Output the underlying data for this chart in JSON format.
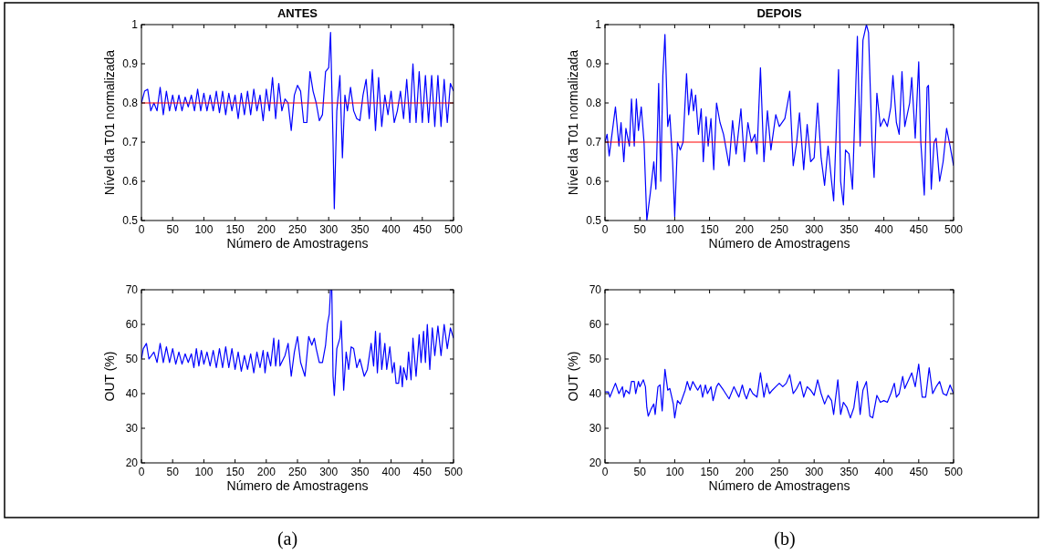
{
  "chart_data": [
    {
      "type": "line",
      "title": "ANTES",
      "xlabel": "Número de Amostragens",
      "ylabel": "Nível da T01 normalizada",
      "xlim": [
        0,
        500
      ],
      "xticks": [
        0,
        50,
        100,
        150,
        200,
        250,
        300,
        350,
        400,
        450,
        500
      ],
      "ylim": [
        0.5,
        1
      ],
      "yticks": [
        0.5,
        0.6,
        0.7,
        0.8,
        0.9,
        1
      ],
      "grid": false,
      "marker": "none",
      "line_style": "solid",
      "x": [
        0,
        5,
        10,
        15,
        20,
        25,
        30,
        35,
        40,
        45,
        50,
        55,
        60,
        65,
        70,
        75,
        80,
        85,
        90,
        95,
        100,
        105,
        110,
        115,
        120,
        125,
        130,
        135,
        140,
        145,
        150,
        155,
        160,
        165,
        170,
        175,
        180,
        185,
        190,
        195,
        200,
        205,
        210,
        215,
        220,
        225,
        230,
        235,
        240,
        245,
        250,
        255,
        260,
        265,
        270,
        275,
        280,
        285,
        290,
        295,
        300,
        303,
        307,
        309,
        313,
        318,
        322,
        326,
        330,
        335,
        340,
        345,
        350,
        355,
        360,
        365,
        370,
        375,
        380,
        385,
        390,
        395,
        400,
        405,
        410,
        415,
        420,
        425,
        430,
        435,
        440,
        445,
        450,
        455,
        460,
        465,
        470,
        475,
        480,
        485,
        490,
        495,
        500
      ],
      "series": [
        {
          "color": "#0000ff",
          "values": [
            0.8,
            0.83,
            0.835,
            0.78,
            0.8,
            0.78,
            0.84,
            0.77,
            0.83,
            0.78,
            0.82,
            0.78,
            0.82,
            0.78,
            0.815,
            0.79,
            0.82,
            0.78,
            0.835,
            0.78,
            0.825,
            0.78,
            0.82,
            0.78,
            0.83,
            0.775,
            0.83,
            0.77,
            0.825,
            0.78,
            0.82,
            0.76,
            0.825,
            0.77,
            0.83,
            0.77,
            0.835,
            0.78,
            0.82,
            0.755,
            0.835,
            0.78,
            0.865,
            0.76,
            0.85,
            0.78,
            0.81,
            0.8,
            0.73,
            0.82,
            0.845,
            0.83,
            0.75,
            0.75,
            0.88,
            0.83,
            0.8,
            0.755,
            0.77,
            0.88,
            0.89,
            0.98,
            0.7,
            0.53,
            0.78,
            0.87,
            0.66,
            0.82,
            0.78,
            0.84,
            0.78,
            0.76,
            0.755,
            0.82,
            0.86,
            0.76,
            0.885,
            0.73,
            0.865,
            0.74,
            0.82,
            0.77,
            0.83,
            0.75,
            0.78,
            0.83,
            0.76,
            0.86,
            0.75,
            0.9,
            0.75,
            0.88,
            0.75,
            0.87,
            0.75,
            0.87,
            0.74,
            0.87,
            0.74,
            0.86,
            0.75,
            0.85,
            0.83
          ]
        }
      ],
      "ref_lines": [
        {
          "axis": "y",
          "value": 0.8,
          "color": "#ff0000"
        }
      ]
    },
    {
      "type": "line",
      "title": "DEPOIS",
      "xlabel": "Número de Amostragens",
      "ylabel": "Nível da T01 normalizada",
      "xlim": [
        0,
        500
      ],
      "xticks": [
        0,
        50,
        100,
        150,
        200,
        250,
        300,
        350,
        400,
        450,
        500
      ],
      "ylim": [
        0.5,
        1
      ],
      "yticks": [
        0.5,
        0.6,
        0.7,
        0.8,
        0.9,
        1
      ],
      "grid": false,
      "marker": "none",
      "line_style": "solid",
      "x": [
        0,
        3,
        6,
        10,
        15,
        20,
        23,
        27,
        30,
        35,
        38,
        42,
        45,
        48,
        52,
        56,
        60,
        65,
        70,
        73,
        77,
        80,
        83,
        86,
        90,
        93,
        97,
        100,
        104,
        108,
        112,
        117,
        120,
        124,
        127,
        130,
        134,
        138,
        141,
        145,
        148,
        152,
        156,
        160,
        165,
        170,
        178,
        183,
        188,
        195,
        200,
        205,
        210,
        215,
        218,
        223,
        228,
        233,
        238,
        245,
        250,
        258,
        265,
        270,
        275,
        279,
        285,
        290,
        295,
        300,
        305,
        310,
        315,
        320,
        325,
        328,
        335,
        338,
        342,
        345,
        350,
        355,
        362,
        366,
        370,
        375,
        378,
        383,
        386,
        390,
        395,
        400,
        405,
        410,
        413,
        418,
        422,
        426,
        430,
        437,
        440,
        445,
        450,
        453,
        458,
        462,
        464,
        468,
        472,
        475,
        480,
        485,
        490,
        495,
        500
      ],
      "series": [
        {
          "color": "#0000ff",
          "values": [
            0.7,
            0.72,
            0.665,
            0.72,
            0.79,
            0.69,
            0.75,
            0.65,
            0.735,
            0.69,
            0.81,
            0.69,
            0.81,
            0.73,
            0.79,
            0.7,
            0.5,
            0.57,
            0.65,
            0.58,
            0.85,
            0.6,
            0.87,
            0.975,
            0.74,
            0.77,
            0.65,
            0.51,
            0.7,
            0.68,
            0.7,
            0.875,
            0.77,
            0.835,
            0.78,
            0.82,
            0.72,
            0.785,
            0.65,
            0.765,
            0.69,
            0.76,
            0.63,
            0.8,
            0.75,
            0.72,
            0.64,
            0.755,
            0.67,
            0.785,
            0.65,
            0.75,
            0.7,
            0.72,
            0.67,
            0.89,
            0.65,
            0.78,
            0.68,
            0.77,
            0.74,
            0.76,
            0.83,
            0.64,
            0.7,
            0.775,
            0.63,
            0.745,
            0.65,
            0.66,
            0.8,
            0.66,
            0.59,
            0.69,
            0.6,
            0.55,
            0.885,
            0.6,
            0.54,
            0.68,
            0.67,
            0.58,
            0.97,
            0.69,
            0.96,
            1.0,
            0.98,
            0.7,
            0.61,
            0.825,
            0.74,
            0.76,
            0.74,
            0.79,
            0.87,
            0.75,
            0.72,
            0.88,
            0.74,
            0.8,
            0.865,
            0.71,
            0.905,
            0.7,
            0.565,
            0.84,
            0.845,
            0.58,
            0.7,
            0.71,
            0.6,
            0.65,
            0.735,
            0.69,
            0.64
          ]
        }
      ],
      "ref_lines": [
        {
          "axis": "y",
          "value": 0.7,
          "color": "#ff0000"
        }
      ]
    },
    {
      "type": "line",
      "xlabel": "Número de Amostragens",
      "ylabel": "OUT (%)",
      "xlim": [
        0,
        500
      ],
      "xticks": [
        0,
        50,
        100,
        150,
        200,
        250,
        300,
        350,
        400,
        450,
        500
      ],
      "ylim": [
        20,
        70
      ],
      "yticks": [
        20,
        30,
        40,
        50,
        60,
        70
      ],
      "grid": false,
      "marker": "none",
      "line_style": "solid",
      "annotations": [
        "(a)"
      ],
      "x": [
        0,
        3,
        8,
        12,
        20,
        25,
        30,
        35,
        40,
        45,
        50,
        55,
        60,
        65,
        70,
        75,
        80,
        84,
        88,
        92,
        96,
        100,
        105,
        110,
        115,
        120,
        125,
        130,
        135,
        140,
        145,
        150,
        155,
        160,
        165,
        170,
        175,
        180,
        185,
        190,
        195,
        198,
        202,
        207,
        212,
        215,
        220,
        222,
        230,
        235,
        240,
        245,
        250,
        255,
        262,
        268,
        273,
        277,
        280,
        285,
        290,
        295,
        298,
        301,
        303,
        305,
        307,
        309,
        313,
        318,
        320,
        324,
        328,
        332,
        336,
        340,
        345,
        350,
        357,
        362,
        368,
        372,
        375,
        378,
        382,
        385,
        390,
        393,
        398,
        402,
        405,
        408,
        412,
        415,
        418,
        420,
        425,
        428,
        432,
        435,
        440,
        445,
        448,
        452,
        455,
        458,
        462,
        466,
        470,
        475,
        480,
        485,
        490,
        495,
        500
      ],
      "series": [
        {
          "color": "#0000ff",
          "values": [
            50,
            53,
            54.5,
            50,
            52,
            49,
            54.5,
            49,
            53.5,
            49,
            53,
            48.5,
            52,
            48.5,
            51.5,
            49,
            51.5,
            47.5,
            53,
            48,
            52.5,
            48.5,
            52,
            48,
            52.5,
            47.5,
            53,
            47.5,
            53.5,
            47.5,
            53,
            47,
            52,
            46.5,
            51,
            47,
            51.5,
            46,
            52,
            47.5,
            52.5,
            46,
            52,
            48,
            56,
            48,
            55.5,
            48,
            51,
            54.5,
            45,
            52,
            56.5,
            49,
            45,
            56.5,
            54,
            56,
            53,
            49,
            49,
            54,
            60,
            63,
            70,
            70,
            45,
            39.5,
            53,
            56,
            61,
            41,
            52,
            47,
            53.5,
            53,
            47.5,
            50,
            45,
            47,
            54.5,
            48,
            58,
            46,
            57.5,
            47,
            54.5,
            47,
            53.5,
            46,
            49,
            43,
            43,
            48,
            42,
            47.5,
            44,
            52,
            44,
            56,
            45,
            57,
            49,
            58,
            49,
            60,
            47,
            59,
            51,
            59.5,
            51,
            60,
            53,
            59,
            56
          ]
        }
      ]
    },
    {
      "type": "line",
      "xlabel": "Número de Amostragens",
      "ylabel": "OUT (%)",
      "xlim": [
        0,
        500
      ],
      "xticks": [
        0,
        50,
        100,
        150,
        200,
        250,
        300,
        350,
        400,
        450,
        500
      ],
      "ylim": [
        20,
        70
      ],
      "yticks": [
        20,
        30,
        40,
        50,
        60,
        70
      ],
      "grid": false,
      "marker": "none",
      "line_style": "solid",
      "annotations": [
        "(b)"
      ],
      "x": [
        0,
        5,
        7,
        15,
        20,
        25,
        27,
        30,
        35,
        38,
        42,
        44,
        48,
        50,
        55,
        58,
        60,
        62,
        66,
        70,
        72,
        76,
        79,
        82,
        86,
        90,
        93,
        98,
        100,
        104,
        108,
        115,
        118,
        122,
        126,
        130,
        133,
        137,
        140,
        144,
        147,
        152,
        155,
        160,
        163,
        170,
        178,
        185,
        192,
        197,
        200,
        203,
        208,
        212,
        218,
        223,
        228,
        232,
        236,
        240,
        245,
        250,
        255,
        260,
        265,
        270,
        275,
        280,
        285,
        290,
        295,
        300,
        305,
        310,
        315,
        320,
        325,
        328,
        334,
        338,
        342,
        347,
        352,
        357,
        362,
        366,
        370,
        375,
        380,
        384,
        390,
        395,
        400,
        405,
        410,
        415,
        418,
        422,
        427,
        430,
        440,
        445,
        450,
        455,
        460,
        465,
        470,
        475,
        480,
        485,
        490,
        495,
        500
      ],
      "series": [
        {
          "color": "#0000ff",
          "values": [
            40.5,
            40.5,
            39,
            43,
            40,
            42,
            39,
            41,
            40,
            43.5,
            43.5,
            40,
            43.5,
            42,
            44,
            42,
            36,
            33.5,
            35.5,
            37,
            34,
            42,
            42.5,
            35,
            47,
            41,
            41.5,
            37,
            33,
            38,
            37,
            41,
            43.5,
            41,
            43.5,
            42,
            41,
            42.5,
            39,
            42.5,
            40,
            42,
            38,
            42,
            43,
            41,
            38.5,
            42,
            39,
            42.5,
            40,
            38.5,
            41.5,
            40,
            39,
            46,
            39,
            43,
            40,
            41,
            42,
            43,
            42,
            43,
            45.5,
            40,
            41.5,
            43.5,
            39,
            42,
            41,
            39.5,
            44,
            40,
            37,
            39.5,
            38,
            34,
            44,
            34,
            37.5,
            36,
            33,
            36,
            43.5,
            34,
            41,
            43.5,
            33.5,
            33,
            39.5,
            37.5,
            38,
            37.5,
            40,
            43,
            39,
            40,
            45,
            41.5,
            46,
            42,
            48.5,
            39,
            39,
            47.5,
            40,
            42,
            43.5,
            40,
            39.5,
            42.5,
            40
          ]
        }
      ]
    }
  ]
}
